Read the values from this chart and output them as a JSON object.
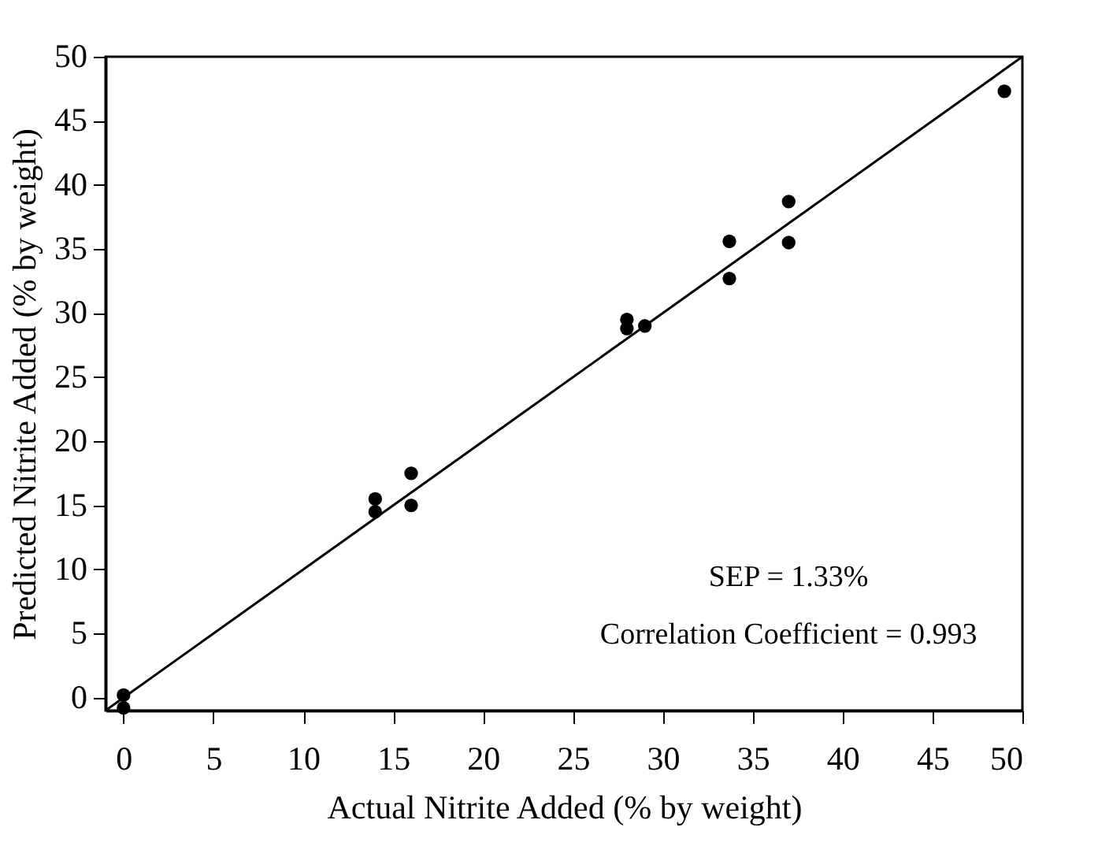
{
  "chart_data": {
    "type": "scatter",
    "xlabel": "Actual Nitrite Added (% by weight)",
    "ylabel": "Predicted Nitrite Added (% by weight)",
    "xlim": [
      -1,
      50
    ],
    "ylim": [
      -1,
      50
    ],
    "xticks": [
      0,
      5,
      10,
      15,
      20,
      25,
      30,
      35,
      40,
      45,
      50
    ],
    "yticks": [
      0,
      5,
      10,
      15,
      20,
      25,
      30,
      35,
      40,
      45,
      50
    ],
    "grid": false,
    "annotations": [
      "SEP = 1.33%",
      "Correlation Coefficient = 0.993"
    ],
    "series": [
      {
        "color": "#000000",
        "marker": "circle",
        "x": [
          0,
          0,
          14,
          14,
          16,
          16,
          28,
          28,
          29,
          33.7,
          33.7,
          37,
          37,
          49
        ],
        "values": [
          0.2,
          -0.8,
          15.5,
          14.5,
          17.5,
          15,
          29.5,
          28.8,
          29,
          35.6,
          32.7,
          38.7,
          35.5,
          47.3
        ]
      },
      {
        "type": "line",
        "color": "#000000",
        "x": [
          -1,
          50
        ],
        "values": [
          -1,
          50
        ]
      }
    ]
  }
}
